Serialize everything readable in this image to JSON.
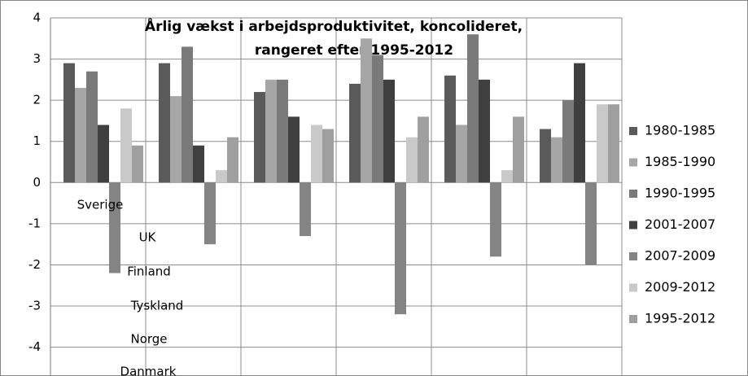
{
  "chart_data": {
    "type": "bar",
    "title": [
      "Årlig vækst i arbejdsproduktivitet, koncolideret,",
      "rangeret efter 1995-2012"
    ],
    "categories": [
      "Sverige",
      "UK",
      "Finland",
      "Tyskland",
      "Norge",
      "Danmark"
    ],
    "series": [
      {
        "name": "1980-1985",
        "color": "#5a5a5a",
        "values": [
          2.9,
          2.9,
          2.2,
          2.4,
          2.6,
          1.3
        ]
      },
      {
        "name": "1985-1990",
        "color": "#a6a6a6",
        "values": [
          2.3,
          2.1,
          2.5,
          3.5,
          1.4,
          1.1
        ]
      },
      {
        "name": "1990-1995",
        "color": "#7a7a7a",
        "values": [
          2.7,
          3.3,
          2.5,
          3.1,
          3.6,
          2.0
        ]
      },
      {
        "name": "2001-2007",
        "color": "#3f3f3f",
        "values": [
          1.4,
          0.9,
          1.6,
          2.5,
          2.5,
          2.9
        ]
      },
      {
        "name": "2007-2009",
        "color": "#848484",
        "values": [
          -2.2,
          -1.5,
          -1.3,
          -3.2,
          -1.8,
          -2.0
        ]
      },
      {
        "name": "2009-2012",
        "color": "#c9c9c9",
        "values": [
          1.8,
          0.3,
          1.4,
          1.1,
          0.3,
          1.9
        ]
      },
      {
        "name": "1995-2012",
        "color": "#9f9f9f",
        "values": [
          0.9,
          1.1,
          1.3,
          1.6,
          1.6,
          1.9
        ]
      }
    ],
    "ylim": [
      -4.7,
      4
    ],
    "yticks": [
      4,
      3,
      2,
      1,
      0,
      -1,
      -2,
      -3,
      -4
    ],
    "grid": true,
    "legend": "right"
  }
}
